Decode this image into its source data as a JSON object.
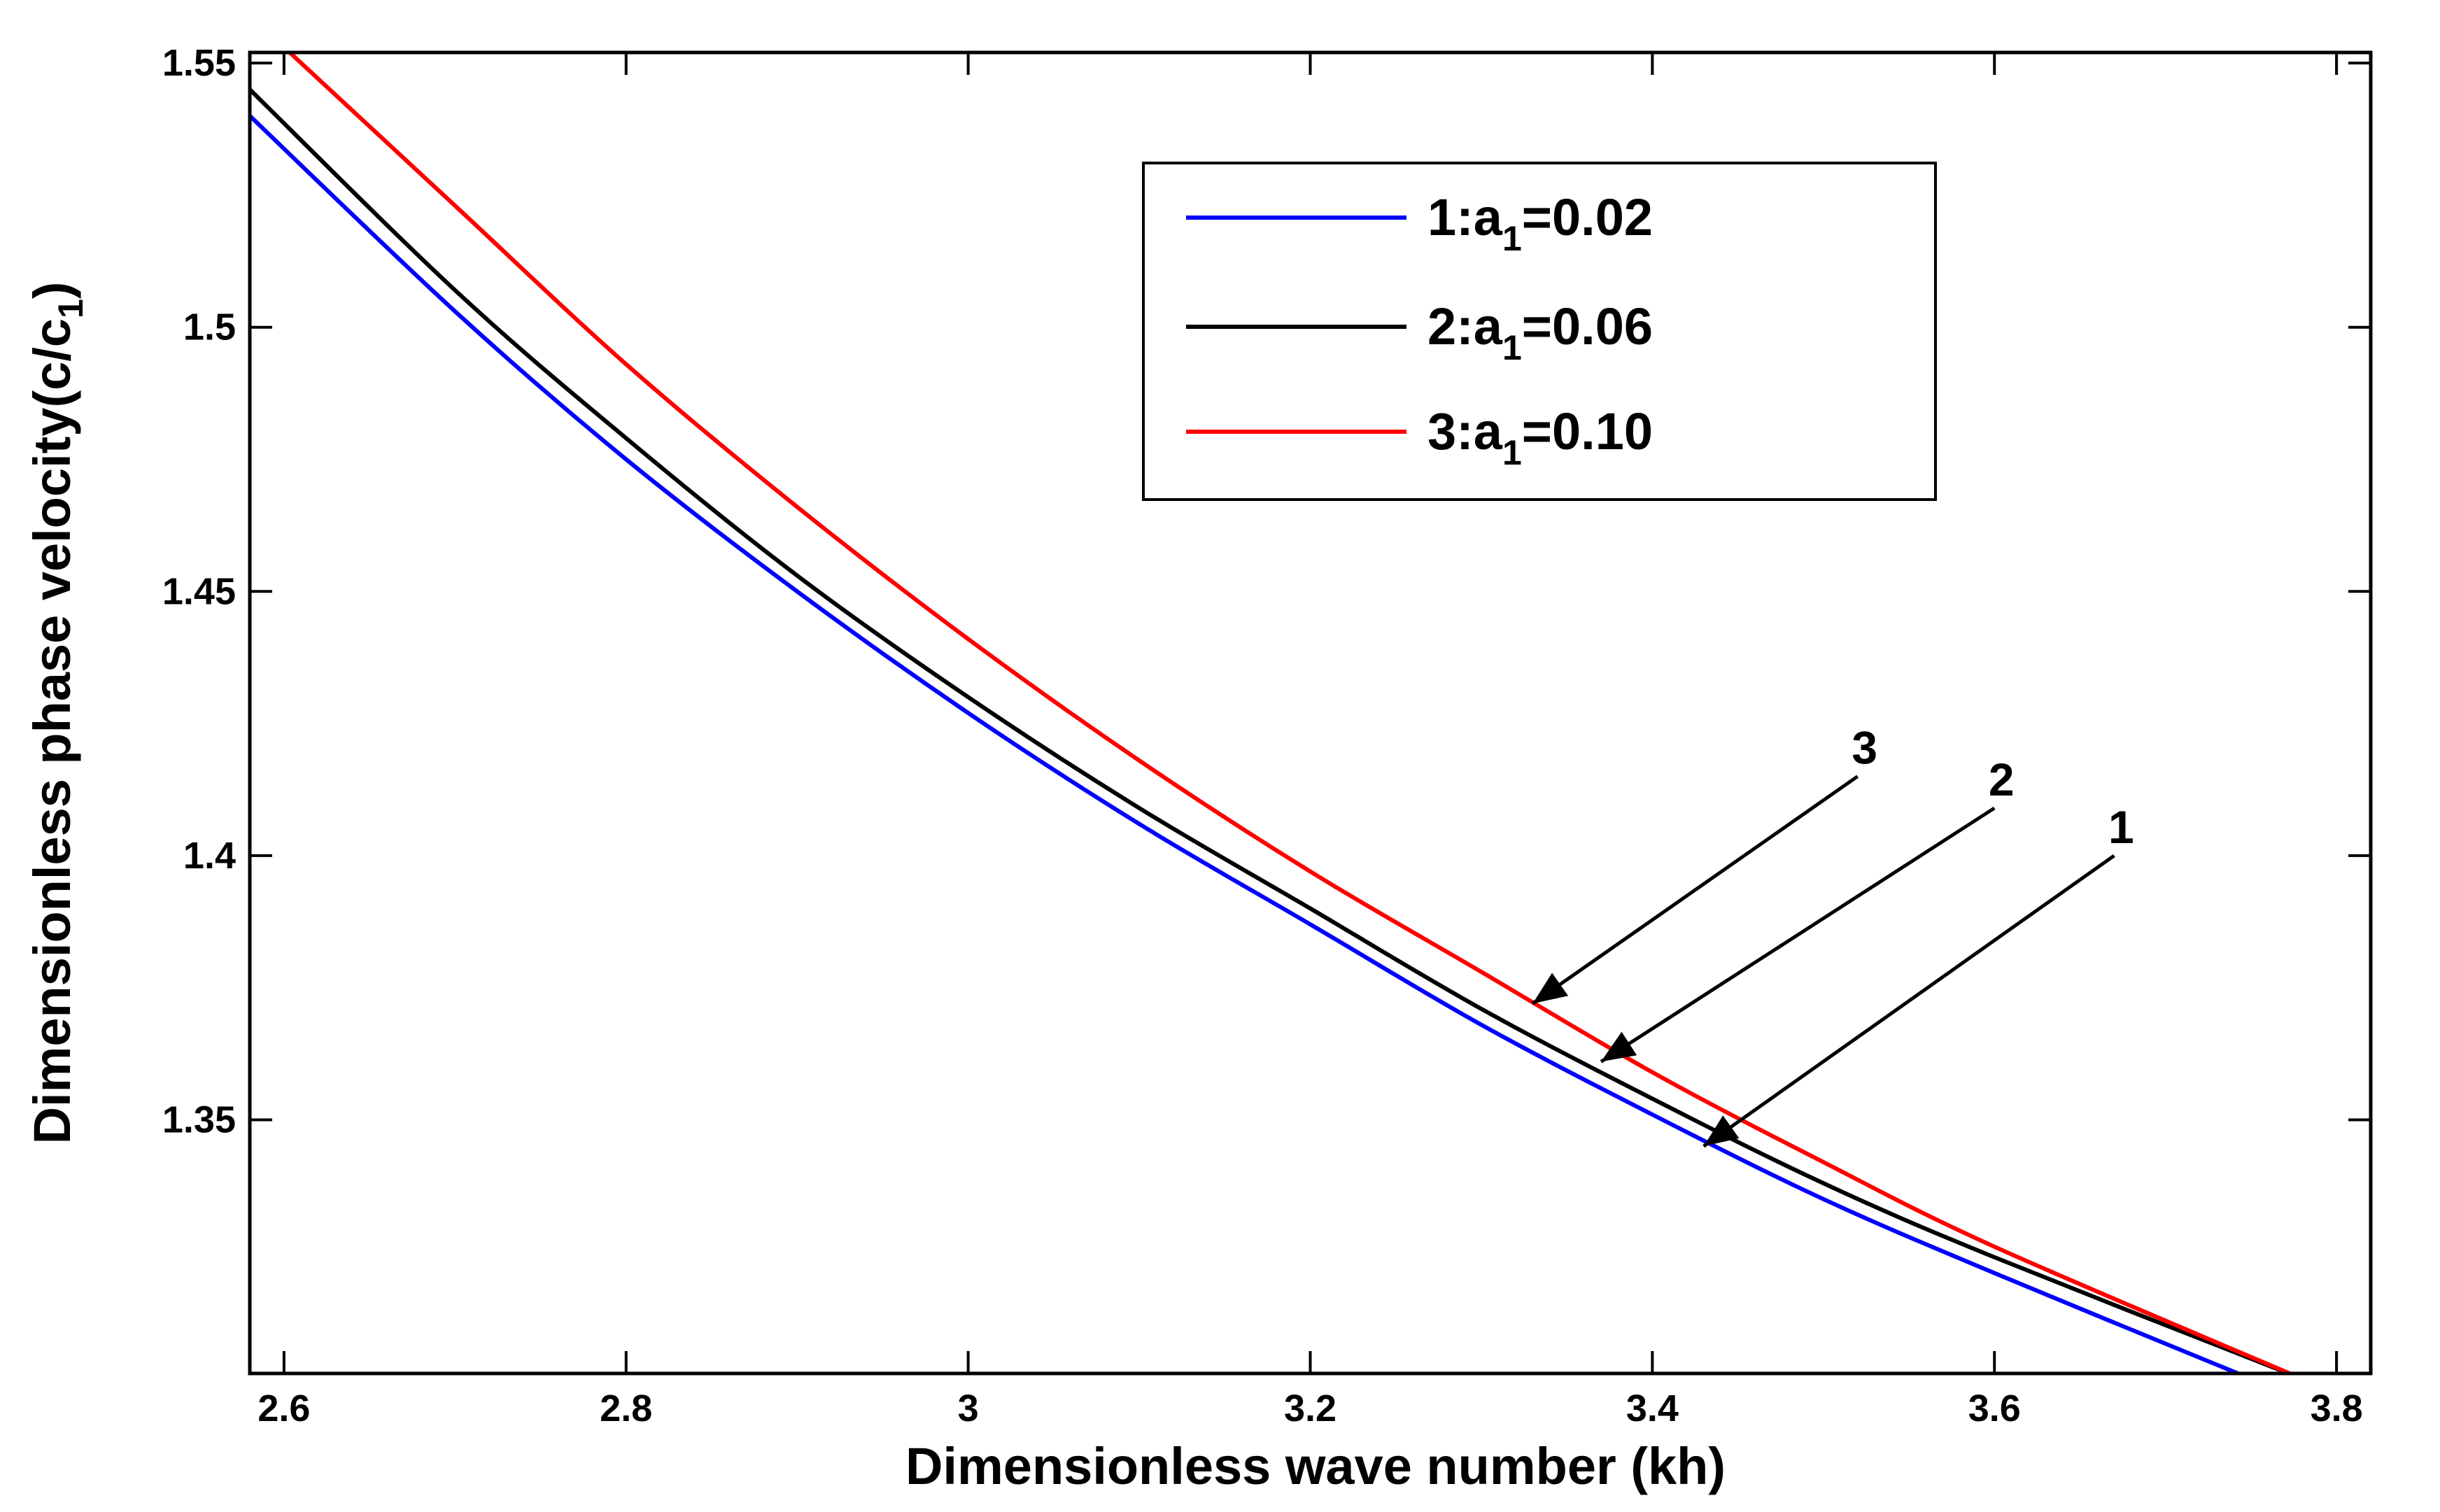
{
  "chart_data": {
    "type": "line",
    "title": "",
    "xlabel": "Dimensionless wave number (kh)",
    "ylabel": "Dimensionless phase velocity(c/c",
    "ylabel_subscript": "1",
    "ylabel_suffix": ")",
    "xlim": [
      2.58,
      3.82
    ],
    "ylim": [
      1.302,
      1.552
    ],
    "xticks": [
      2.6,
      2.8,
      3,
      3.2,
      3.4,
      3.6,
      3.8
    ],
    "xtick_labels": [
      "2.6",
      "2.8",
      "3",
      "3.2",
      "3.4",
      "3.6",
      "3.8"
    ],
    "yticks": [
      1.35,
      1.4,
      1.45,
      1.5,
      1.55
    ],
    "ytick_labels": [
      "1.35",
      "1.4",
      "1.45",
      "1.5",
      "1.55"
    ],
    "grid": false,
    "legend_position": "top-right",
    "series": [
      {
        "name": "1:a1=0.02",
        "legend_prefix": "1:a",
        "legend_sub": "1",
        "legend_suffix": "=0.02",
        "color": "#0000ff",
        "x": [
          2.58,
          2.7,
          2.8,
          2.9,
          3.0,
          3.1,
          3.2,
          3.3,
          3.4,
          3.5,
          3.6,
          3.75
        ],
        "y": [
          1.54,
          1.503,
          1.475,
          1.45,
          1.427,
          1.406,
          1.387,
          1.368,
          1.351,
          1.335,
          1.321,
          1.301
        ]
      },
      {
        "name": "2:a1=0.06",
        "legend_prefix": "2:a",
        "legend_sub": "1",
        "legend_suffix": "=0.06",
        "color": "#000000",
        "x": [
          2.58,
          2.7,
          2.8,
          2.9,
          3.0,
          3.1,
          3.2,
          3.3,
          3.4,
          3.5,
          3.6,
          3.78
        ],
        "y": [
          1.545,
          1.507,
          1.479,
          1.453,
          1.43,
          1.409,
          1.39,
          1.371,
          1.354,
          1.338,
          1.324,
          1.301
        ]
      },
      {
        "name": "3:a1=0.10",
        "legend_prefix": "3:a",
        "legend_sub": "1",
        "legend_suffix": "=0.10",
        "color": "#ff0000",
        "x": [
          2.6,
          2.7,
          2.8,
          2.9,
          3.0,
          3.1,
          3.2,
          3.3,
          3.4,
          3.5,
          3.6,
          3.78
        ],
        "y": [
          1.553,
          1.523,
          1.493,
          1.466,
          1.441,
          1.418,
          1.397,
          1.378,
          1.359,
          1.342,
          1.326,
          1.301
        ]
      }
    ],
    "annotations": [
      {
        "label": "3",
        "tail": [
          3.52,
          1.415
        ],
        "head": [
          3.33,
          1.372
        ]
      },
      {
        "label": "2",
        "tail": [
          3.6,
          1.409
        ],
        "head": [
          3.37,
          1.361
        ]
      },
      {
        "label": "1",
        "tail": [
          3.67,
          1.4
        ],
        "head": [
          3.43,
          1.345
        ]
      }
    ]
  }
}
